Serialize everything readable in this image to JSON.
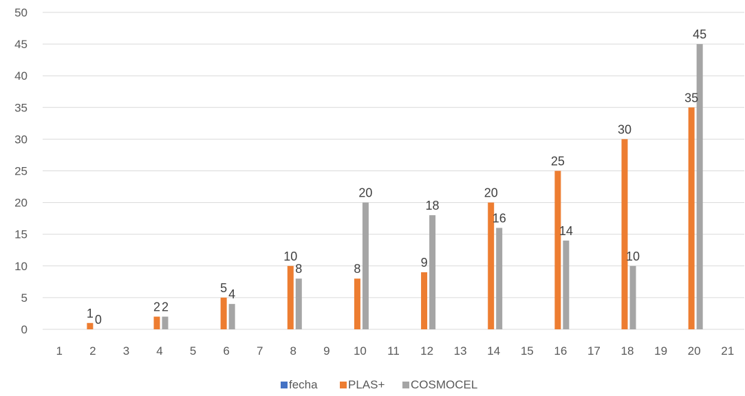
{
  "chart_data": {
    "type": "bar",
    "categories": [
      "1",
      "2",
      "3",
      "4",
      "5",
      "6",
      "7",
      "8",
      "9",
      "10",
      "11",
      "12",
      "13",
      "14",
      "15",
      "16",
      "17",
      "18",
      "19",
      "20",
      "21"
    ],
    "series": [
      {
        "name": "fecha",
        "color": "#4472C4",
        "values": [
          null,
          null,
          null,
          null,
          null,
          null,
          null,
          null,
          null,
          null,
          null,
          null,
          null,
          null,
          null,
          null,
          null,
          null,
          null,
          null,
          null
        ]
      },
      {
        "name": "PLAS+",
        "color": "#ED7D31",
        "values": [
          null,
          1,
          null,
          2,
          null,
          5,
          null,
          10,
          null,
          8,
          null,
          9,
          null,
          20,
          null,
          25,
          null,
          30,
          null,
          35,
          null
        ]
      },
      {
        "name": "COSMOCEL",
        "color": "#A5A5A5",
        "values": [
          null,
          0,
          null,
          2,
          null,
          4,
          null,
          8,
          null,
          20,
          null,
          18,
          null,
          16,
          null,
          14,
          null,
          10,
          null,
          45,
          null
        ]
      }
    ],
    "y_ticks": [
      "0",
      "5",
      "10",
      "15",
      "20",
      "25",
      "30",
      "35",
      "40",
      "45",
      "50"
    ],
    "ylim": [
      0,
      50
    ],
    "grid": true,
    "legend": "bottom"
  }
}
